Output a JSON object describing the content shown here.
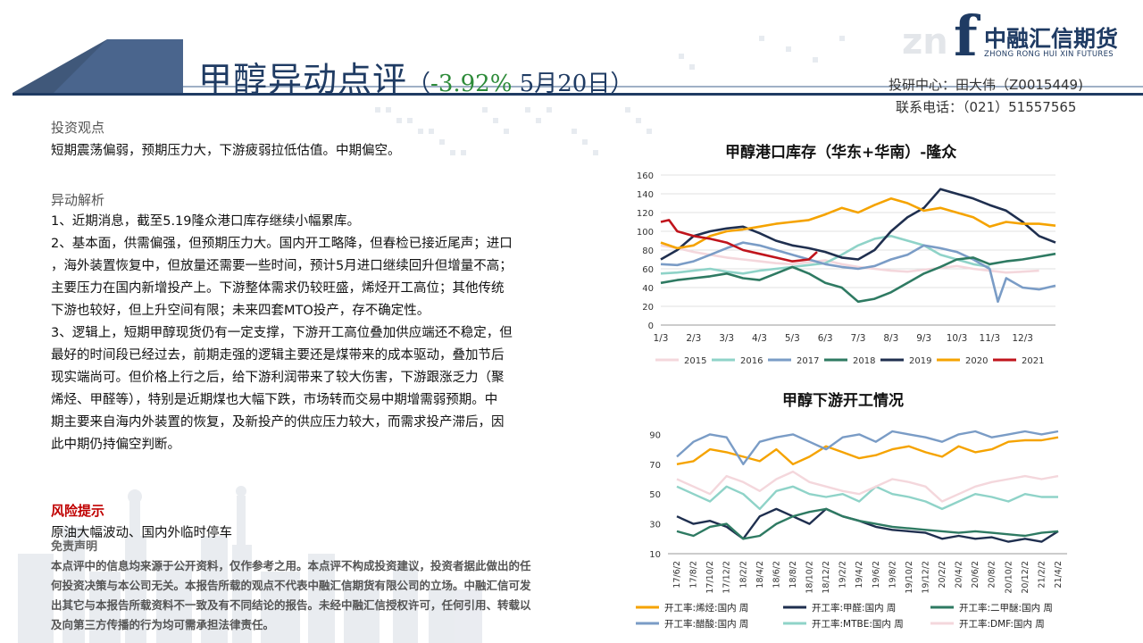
{
  "header": {
    "title_main": "甲醇异动点评",
    "title_paren_open": "（",
    "title_change": "-3.92%",
    "title_date": " 5月20日",
    "title_paren_close": "）",
    "logo_name": "中融汇信期货",
    "logo_sub": "ZHONG RONG HUI XIN FUTURES",
    "logo_letter": "f",
    "logo_watermark": "zn",
    "researcher": "投研中心：田大伟（Z0015449)",
    "phone": "联系电话：（021）51557565"
  },
  "sections": {
    "view_title": "投资观点",
    "view_text": "短期震荡偏弱，预期压力大，下游疲弱拉低估值。中期偏空。",
    "analysis_title": "异动解析",
    "analysis_lines": [
      "1、近期消息，截至5.19隆众港口库存继续小幅累库。",
      "2、基本面，供需偏强，但预期压力大。国内开工略降，但春检已接近尾声；进口",
      "，海外装置恢复中，但放量还需要一些时间，预计5月进口继续回升但增量不高；",
      "主要压力在国内新增投产上。下游整体需求仍较旺盛，烯烃开工高位；其他传统",
      "下游也较好，但上升空间有限；未来四套MTO投产，存不确定性。",
      "3、逻辑上，短期甲醇现货仍有一定支撑，下游开工高位叠加供应端还不稳定，但",
      "最好的时间段已经过去，前期走强的逻辑主要还是煤带来的成本驱动，叠加节后",
      "现实端尚可。但价格上行之后，给下游利润带来了较大伤害，下游跟涨乏力（聚",
      "烯烃、甲醛等），特别是近期煤也大幅下跌，市场转而交易中期增需弱预期。中",
      "期主要来自海内外装置的恢复，及新投产的供应压力较大，而需求投产滞后，因",
      "此中期仍持偏空判断。"
    ],
    "risk_title": "风险提示",
    "risk_text": "原油大幅波动、国内外临时停车",
    "disclaimer_title": "免责声明",
    "disclaimer_lines": [
      "本点评中的信息均来源于公开资料，仅作参考之用。本点评不构成投资建议，投资者据此做出的任",
      "何投资决策与本公司无关。本报告所载的观点不代表中融汇信期货有限公司的立场。中融汇信可发",
      "出其它与本报告所载资料不一致及有不同结论的报告。未经中融汇信授权许可，任何引用、转载以",
      "及向第三方传播的行为均可需承担法律责任。"
    ]
  },
  "chart_data": [
    {
      "type": "line",
      "title": "甲醇港口库存（华东+华南）-隆众",
      "xlabel": "",
      "ylabel": "",
      "ylim": [
        0,
        160
      ],
      "yticks": [
        0,
        20,
        40,
        60,
        80,
        100,
        120,
        140,
        160
      ],
      "xlim": [
        1,
        13
      ],
      "x_tick_labels": [
        "1/3",
        "2/3",
        "3/3",
        "4/3",
        "5/3",
        "6/3",
        "7/3",
        "8/3",
        "9/3",
        "10/3",
        "11/3",
        "12/3"
      ],
      "grid": true,
      "legend": "bottom",
      "series": [
        {
          "name": "2015",
          "color": "#f4d7dc",
          "x": [
            1,
            1.5,
            2,
            2.5,
            3,
            3.5,
            4,
            4.5,
            5,
            5.5,
            6,
            6.5,
            7,
            7.5,
            8,
            8.5,
            9,
            9.5,
            10,
            10.5,
            11,
            11.5,
            12,
            12.5
          ],
          "y": [
            85,
            82,
            78,
            75,
            72,
            70,
            68,
            66,
            65,
            67,
            69,
            65,
            62,
            60,
            58,
            57,
            59,
            61,
            63,
            60,
            58,
            56,
            57,
            58
          ]
        },
        {
          "name": "2016",
          "color": "#8fd3c8",
          "x": [
            1,
            1.5,
            2,
            2.5,
            3,
            3.5,
            4,
            4.5,
            5,
            5.5,
            6,
            6.5,
            7,
            7.5,
            8,
            8.5,
            9,
            9.5,
            10,
            10.5,
            11
          ],
          "y": [
            55,
            56,
            58,
            60,
            57,
            55,
            58,
            60,
            62,
            64,
            66,
            75,
            85,
            92,
            95,
            90,
            85,
            75,
            70,
            65,
            62
          ]
        },
        {
          "name": "2017",
          "color": "#7a9cc6",
          "x": [
            1,
            1.5,
            2,
            2.5,
            3,
            3.5,
            4,
            4.5,
            5,
            5.5,
            6,
            6.5,
            7,
            7.5,
            8,
            8.5,
            9,
            9.5,
            10,
            10.5,
            11,
            11.25,
            11.5,
            12,
            12.5,
            13
          ],
          "y": [
            65,
            64,
            68,
            75,
            82,
            88,
            85,
            80,
            75,
            70,
            65,
            62,
            60,
            63,
            70,
            75,
            85,
            82,
            78,
            70,
            60,
            25,
            50,
            40,
            38,
            42
          ]
        },
        {
          "name": "2018",
          "color": "#2e7a62",
          "x": [
            1,
            1.5,
            2,
            2.5,
            3,
            3.5,
            4,
            4.5,
            5,
            5.5,
            6,
            6.5,
            7,
            7.5,
            8,
            8.5,
            9,
            9.5,
            10,
            10.5,
            11,
            11.5,
            12,
            12.5,
            13
          ],
          "y": [
            45,
            48,
            50,
            52,
            55,
            50,
            48,
            55,
            62,
            55,
            45,
            40,
            25,
            28,
            35,
            45,
            55,
            62,
            70,
            72,
            65,
            68,
            70,
            73,
            76
          ]
        },
        {
          "name": "2019",
          "color": "#1f2f4f",
          "x": [
            1,
            1.5,
            2,
            2.5,
            3,
            3.5,
            4,
            4.5,
            5,
            5.5,
            6,
            6.5,
            7,
            7.5,
            8,
            8.5,
            9,
            9.25,
            9.5,
            10,
            10.5,
            11,
            11.5,
            12,
            12.5,
            13
          ],
          "y": [
            70,
            80,
            95,
            100,
            103,
            105,
            98,
            90,
            85,
            82,
            78,
            72,
            70,
            80,
            100,
            115,
            125,
            135,
            145,
            140,
            135,
            128,
            122,
            110,
            95,
            88
          ]
        },
        {
          "name": "2020",
          "color": "#f5a300",
          "x": [
            1,
            1.5,
            2,
            2.5,
            3,
            3.5,
            4,
            4.5,
            5,
            5.5,
            6,
            6.5,
            7,
            7.5,
            8,
            8.5,
            9,
            9.5,
            10,
            10.5,
            11,
            11.5,
            12,
            12.5,
            13
          ],
          "y": [
            88,
            82,
            85,
            95,
            100,
            102,
            105,
            108,
            110,
            112,
            118,
            125,
            120,
            128,
            135,
            130,
            122,
            125,
            120,
            115,
            105,
            110,
            108,
            108,
            106
          ]
        },
        {
          "name": "2021",
          "color": "#c0141c",
          "x": [
            1,
            1.25,
            1.5,
            2,
            2.5,
            3,
            3.5,
            4,
            4.5,
            5,
            5.5,
            5.75
          ],
          "y": [
            110,
            112,
            100,
            95,
            92,
            88,
            80,
            76,
            72,
            68,
            70,
            78
          ]
        }
      ]
    },
    {
      "type": "line",
      "title": "甲醇下游开工情况",
      "xlabel": "",
      "ylabel": "",
      "ylim": [
        10,
        95
      ],
      "yticks": [
        10,
        30,
        50,
        70,
        90
      ],
      "x_tick_labels": [
        "17/6/2",
        "17/8/2",
        "17/10/2",
        "17/12/2",
        "18/2/2",
        "18/4/2",
        "18/6/2",
        "18/8/2",
        "18/10/2",
        "18/12/2",
        "19/2/2",
        "19/4/2",
        "19/6/2",
        "19/8/2",
        "19/10/2",
        "19/12/2",
        "20/2/2",
        "20/4/2",
        "20/6/2",
        "20/8/2",
        "20/10/2",
        "20/12/2",
        "21/2/2",
        "21/4/2"
      ],
      "grid": false,
      "legend": "bottom",
      "series": [
        {
          "name": "开工率:烯烃:国内 周",
          "color": "#f5a300",
          "x": [
            0,
            1,
            2,
            3,
            4,
            5,
            6,
            7,
            8,
            9,
            10,
            11,
            12,
            13,
            14,
            15,
            16,
            17,
            18,
            19,
            20,
            21,
            22,
            23
          ],
          "y": [
            70,
            72,
            80,
            78,
            75,
            72,
            80,
            70,
            75,
            82,
            78,
            74,
            76,
            80,
            82,
            78,
            75,
            82,
            78,
            80,
            85,
            86,
            86,
            88
          ]
        },
        {
          "name": "开工率:甲醛:国内 周",
          "color": "#1f2f4f",
          "x": [
            0,
            1,
            2,
            3,
            4,
            5,
            6,
            7,
            8,
            9,
            10,
            11,
            12,
            13,
            14,
            15,
            16,
            17,
            18,
            19,
            20,
            21,
            22,
            23
          ],
          "y": [
            35,
            30,
            32,
            28,
            20,
            35,
            40,
            35,
            30,
            40,
            35,
            32,
            28,
            26,
            25,
            24,
            20,
            22,
            20,
            21,
            18,
            20,
            18,
            25
          ]
        },
        {
          "name": "开工率:二甲醚:国内 周",
          "color": "#2e7a62",
          "x": [
            0,
            1,
            2,
            3,
            4,
            5,
            6,
            7,
            8,
            9,
            10,
            11,
            12,
            13,
            14,
            15,
            16,
            17,
            18,
            19,
            20,
            21,
            22,
            23
          ],
          "y": [
            25,
            22,
            28,
            30,
            20,
            22,
            30,
            35,
            38,
            40,
            35,
            32,
            30,
            28,
            27,
            26,
            25,
            24,
            25,
            24,
            23,
            22,
            24,
            25
          ]
        },
        {
          "name": "开工率:醋酸:国内 周",
          "color": "#7a9cc6",
          "x": [
            0,
            1,
            2,
            3,
            4,
            5,
            6,
            7,
            8,
            9,
            10,
            11,
            12,
            13,
            14,
            15,
            16,
            17,
            18,
            19,
            20,
            21,
            22,
            23
          ],
          "y": [
            75,
            85,
            90,
            88,
            70,
            85,
            88,
            90,
            85,
            80,
            88,
            90,
            85,
            92,
            90,
            88,
            85,
            90,
            92,
            88,
            90,
            92,
            90,
            92
          ]
        },
        {
          "name": "开工率:MTBE:国内 周",
          "color": "#8fd3c8",
          "x": [
            0,
            1,
            2,
            3,
            4,
            5,
            6,
            7,
            8,
            9,
            10,
            11,
            12,
            13,
            14,
            15,
            16,
            17,
            18,
            19,
            20,
            21,
            22,
            23
          ],
          "y": [
            55,
            50,
            45,
            55,
            50,
            40,
            52,
            55,
            50,
            48,
            50,
            45,
            55,
            50,
            48,
            45,
            40,
            45,
            50,
            48,
            45,
            50,
            48,
            48
          ]
        },
        {
          "name": "开工率:DMF:国内 周",
          "color": "#f4d7dc",
          "x": [
            0,
            1,
            2,
            3,
            4,
            5,
            6,
            7,
            8,
            9,
            10,
            11,
            12,
            13,
            14,
            15,
            16,
            17,
            18,
            19,
            20,
            21,
            22,
            23
          ],
          "y": [
            60,
            55,
            50,
            62,
            58,
            52,
            60,
            65,
            58,
            55,
            52,
            50,
            55,
            60,
            58,
            55,
            45,
            50,
            55,
            58,
            60,
            62,
            60,
            62
          ]
        }
      ]
    }
  ]
}
